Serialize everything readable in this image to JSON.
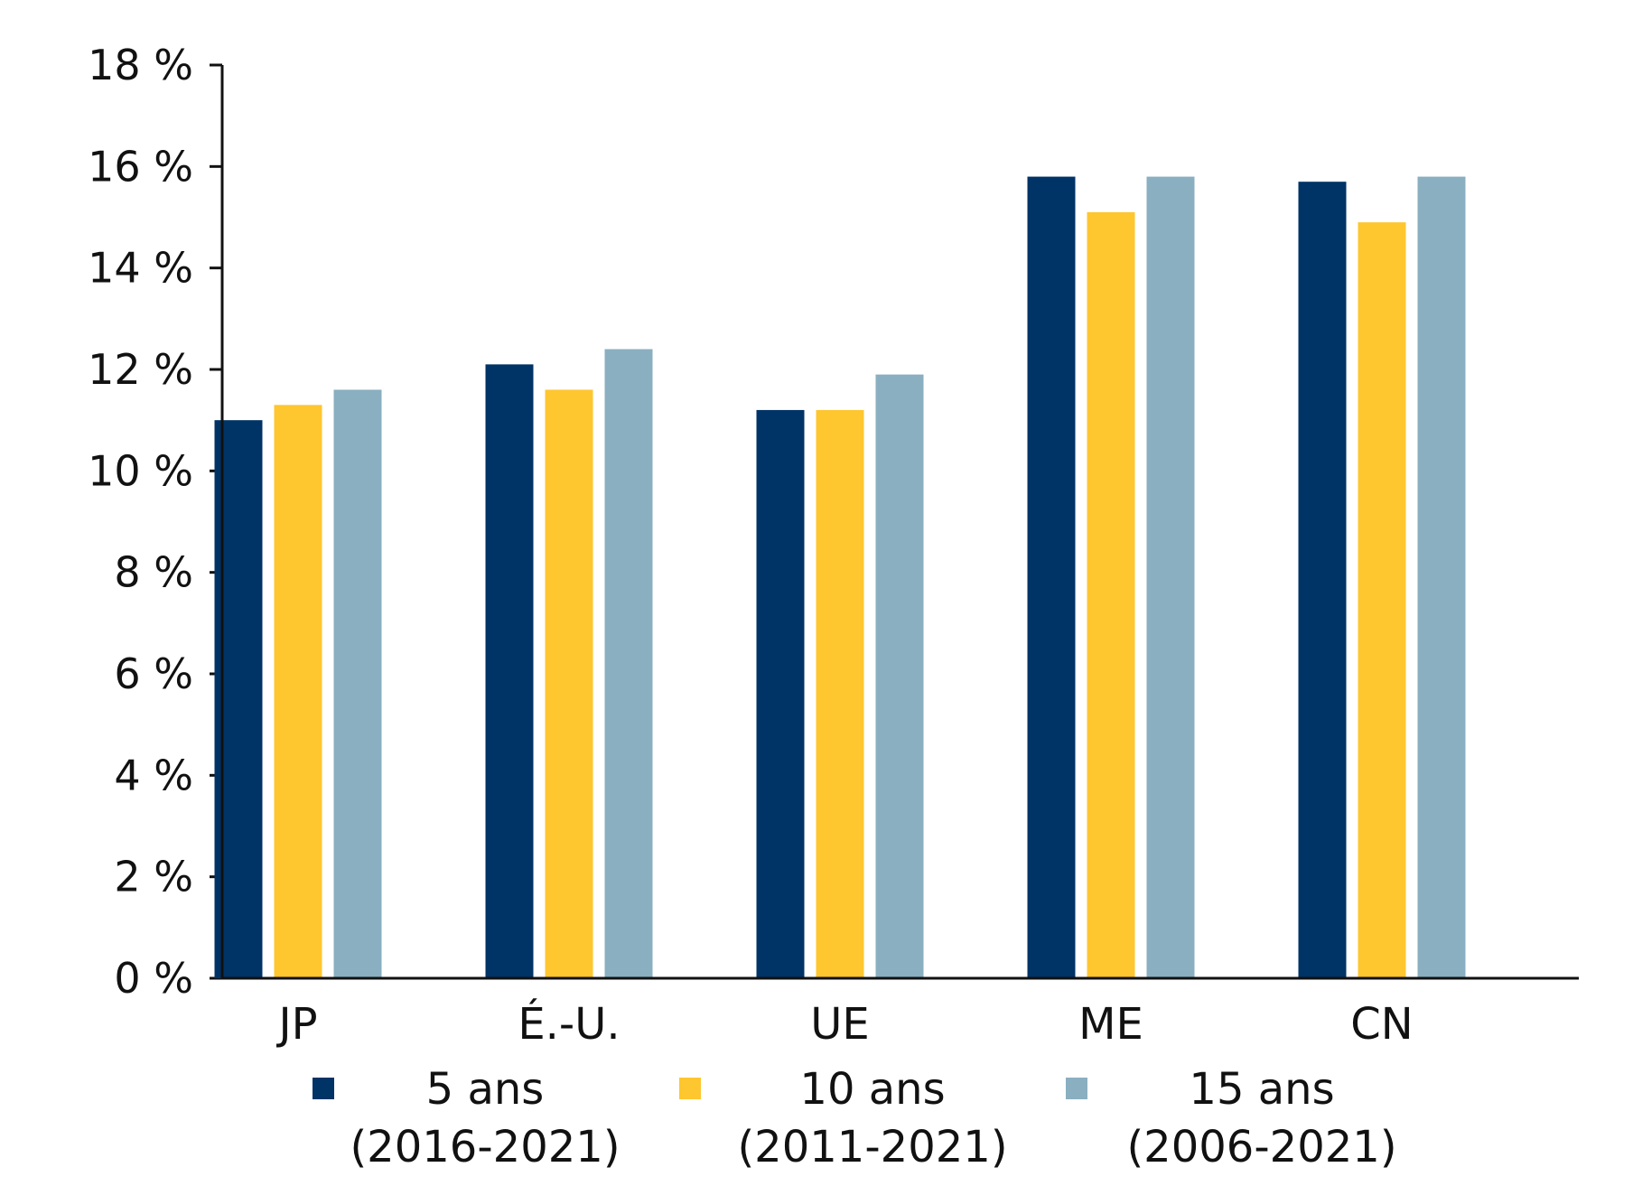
{
  "chart_data": {
    "type": "bar",
    "title": "",
    "xlabel": "",
    "ylabel": "",
    "categories": [
      "JP",
      "É.-U.",
      "UE",
      "ME",
      "CN"
    ],
    "series": [
      {
        "name": "5 ans",
        "period": "(2016-2021)",
        "color": "#003366",
        "values": [
          11.0,
          12.1,
          11.2,
          15.8,
          15.7
        ]
      },
      {
        "name": "10 ans",
        "period": "(2011-2021)",
        "color": "#FEC62F",
        "values": [
          11.3,
          11.6,
          11.2,
          15.1,
          14.9
        ]
      },
      {
        "name": "15 ans",
        "period": "(2006-2021)",
        "color": "#8AAFC0",
        "values": [
          11.6,
          12.4,
          11.9,
          15.8,
          15.8
        ]
      }
    ],
    "ylim": [
      0,
      18
    ],
    "yticks": [
      0,
      2,
      4,
      6,
      8,
      10,
      12,
      14,
      16,
      18
    ],
    "ytick_labels": [
      "0 %",
      "2 %",
      "4 %",
      "6 %",
      "8 %",
      "10 %",
      "12 %",
      "14 %",
      "16 %",
      "18 %"
    ],
    "grid": false,
    "legend": "bottom"
  }
}
